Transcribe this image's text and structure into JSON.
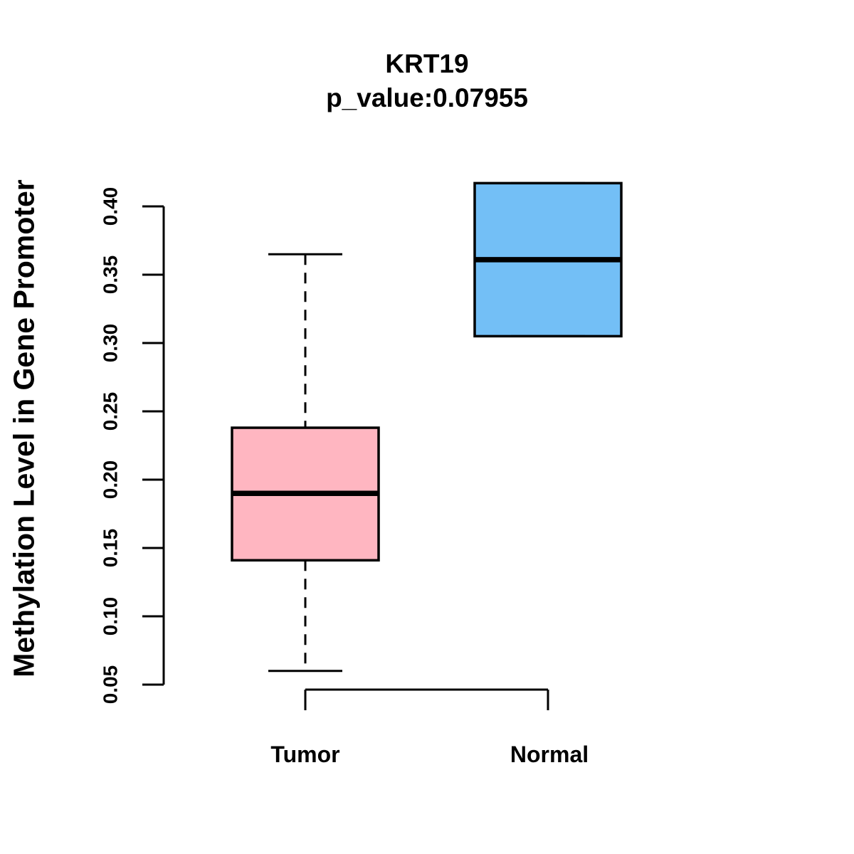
{
  "figure": {
    "background": "#FFFFFF",
    "text_color": "#000000"
  },
  "chart_data": {
    "type": "boxplot",
    "title": "KRT19",
    "subtitle": "p_value:0.07955",
    "gene": "KRT19",
    "p_value": 0.07955,
    "xlabel": "",
    "ylabel": "Methylation Level in Gene Promoter",
    "categories": [
      "Tumor",
      "Normal"
    ],
    "y_axis": {
      "range": [
        0.05,
        0.4
      ],
      "ticks": [
        0.05,
        0.1,
        0.15,
        0.2,
        0.25,
        0.3,
        0.35,
        0.4
      ],
      "tick_labels": [
        "0.05",
        "0.10",
        "0.15",
        "0.20",
        "0.25",
        "0.30",
        "0.35",
        "0.40"
      ]
    },
    "series": [
      {
        "name": "Tumor",
        "color": "#FFB6C1",
        "whisker_low": 0.06,
        "q1": 0.141,
        "median": 0.19,
        "q3": 0.238,
        "whisker_high": 0.365
      },
      {
        "name": "Normal",
        "color": "#73BFF6",
        "whisker_low": 0.305,
        "q1": 0.305,
        "median": 0.361,
        "q3": 0.417,
        "whisker_high": 0.417
      }
    ],
    "box_border_color": "#000000",
    "median_color": "#000000",
    "grid": false,
    "legend": "none"
  }
}
